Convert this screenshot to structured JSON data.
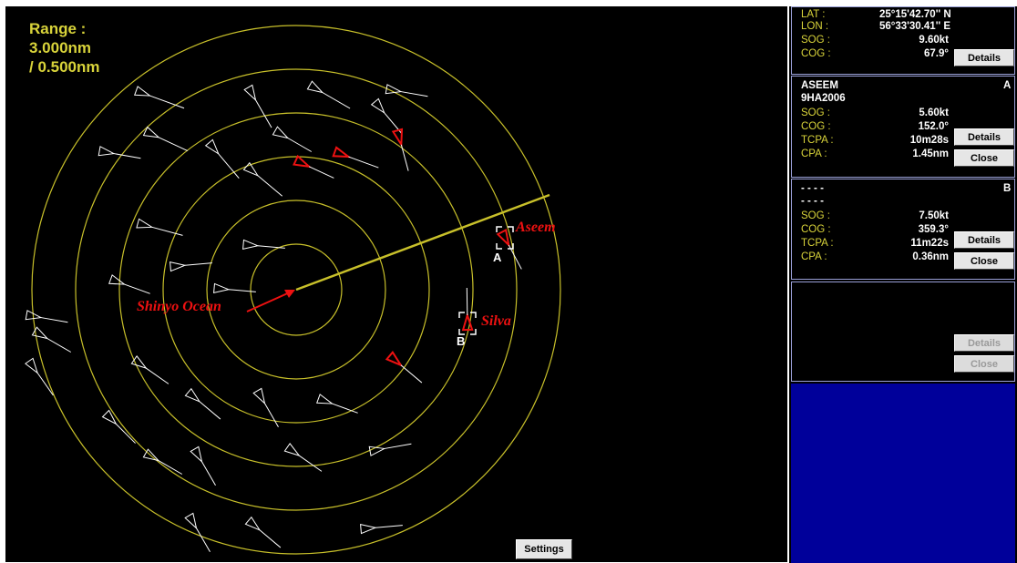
{
  "radar": {
    "range_label": "Range :",
    "range_value": "3.000nm",
    "range_interval": "/ 0.500nm",
    "settings_label": "Settings",
    "ring_color": "#c8c02a",
    "own_ship_label": "Shinyo Ocean",
    "targets": [
      {
        "letter": "A",
        "name": "Aseem"
      },
      {
        "letter": "B",
        "name": "Silva"
      }
    ]
  },
  "own_ship": {
    "lat_label": "LAT :",
    "lat_value": "25°15'42.70'' N",
    "lon_label": "LON :",
    "lon_value": "56°33'30.41'' E",
    "sog_label": "SOG :",
    "sog_value": "9.60kt",
    "cog_label": "COG :",
    "cog_value": "67.9°",
    "details_label": "Details"
  },
  "target_a": {
    "name": "ASEEM",
    "callsign": "9HA2006",
    "letter": "A",
    "sog_label": "SOG :",
    "sog_value": "5.60kt",
    "cog_label": "COG :",
    "cog_value": "152.0°",
    "tcpa_label": "TCPA :",
    "tcpa_value": "10m28s",
    "cpa_label": "CPA :",
    "cpa_value": "1.45nm",
    "details_label": "Details",
    "close_label": "Close"
  },
  "target_b": {
    "name": "- - - -",
    "callsign": "- - - -",
    "letter": "B",
    "sog_label": "SOG :",
    "sog_value": "7.50kt",
    "cog_label": "COG :",
    "cog_value": "359.3°",
    "tcpa_label": "TCPA :",
    "tcpa_value": "11m22s",
    "cpa_label": "CPA :",
    "cpa_value": "0.36nm",
    "details_label": "Details",
    "close_label": "Close"
  },
  "empty_slot": {
    "details_label": "Details",
    "close_label": "Close"
  }
}
